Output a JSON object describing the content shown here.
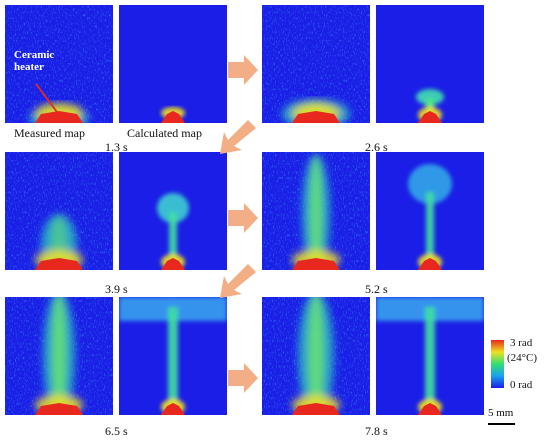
{
  "figure": {
    "annotation": {
      "line1": "Ceramic",
      "line2": "heater"
    },
    "map_labels": {
      "measured": "Measured map",
      "calculated": "Calculated map"
    },
    "time_labels": [
      "1.3 s",
      "2.6 s",
      "3.9 s",
      "5.2 s",
      "6.5 s",
      "7.8 s"
    ],
    "colorbar": {
      "max_label": "3 rad",
      "max_sub": "(24°C)",
      "min_label": "0 rad"
    },
    "scale_bar": {
      "label": "5 mm"
    },
    "colors": {
      "background_blue": "#1a1ee6",
      "arrow": "#f4ae86",
      "hot": "#e8281e"
    }
  }
}
